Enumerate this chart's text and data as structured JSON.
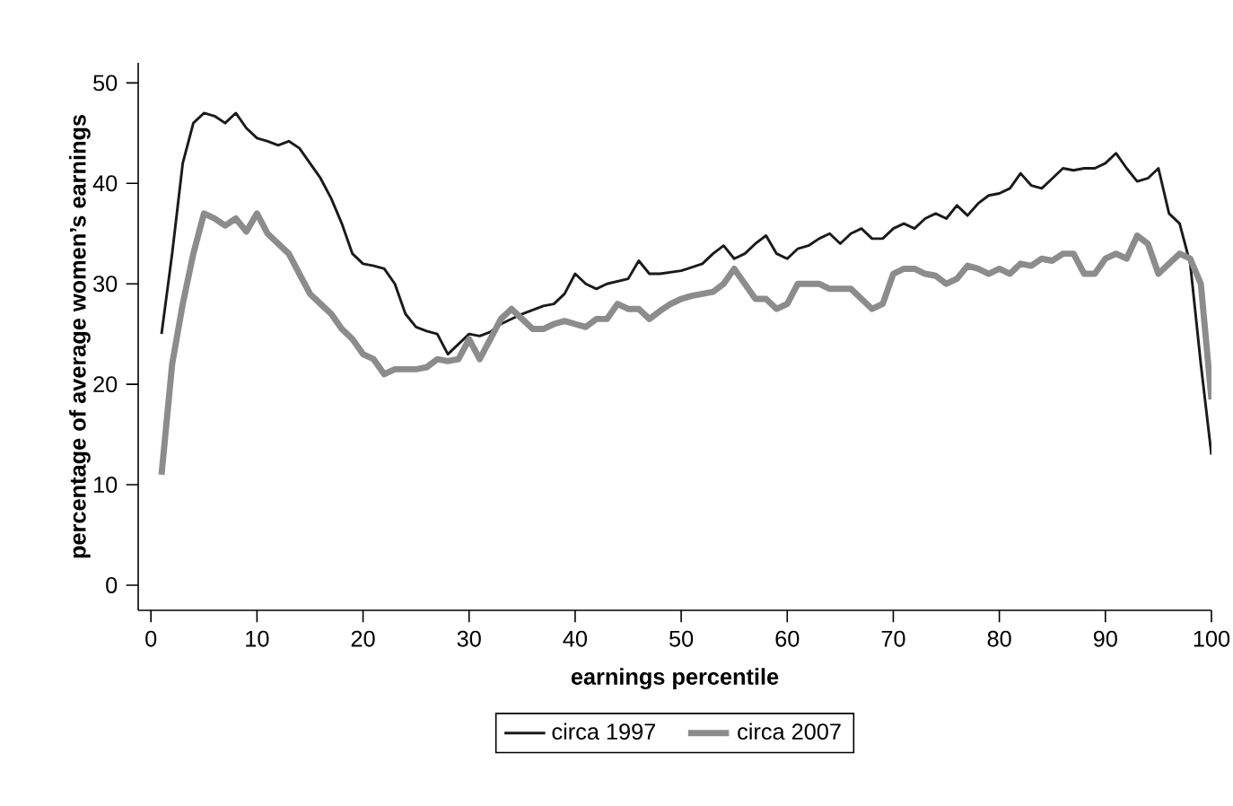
{
  "chart_data": {
    "type": "line",
    "xlabel": "earnings percentile",
    "ylabel": "percentage of average women’s earnings",
    "xlim": [
      -1.2,
      100
    ],
    "ylim": [
      -2.5,
      52
    ],
    "xticks": [
      0,
      10,
      20,
      30,
      40,
      50,
      60,
      70,
      80,
      90,
      100
    ],
    "yticks": [
      0,
      10,
      20,
      30,
      40,
      50
    ],
    "grid": false,
    "legend": "bottom",
    "line_style": "solid",
    "series": [
      {
        "name": "circa 1997",
        "color": "#1a1a1a",
        "x": [
          1,
          2,
          3,
          4,
          5,
          6,
          7,
          8,
          9,
          10,
          11,
          12,
          13,
          14,
          15,
          16,
          17,
          18,
          19,
          20,
          21,
          22,
          23,
          24,
          25,
          26,
          27,
          28,
          29,
          30,
          31,
          32,
          33,
          35,
          37,
          38,
          39,
          40,
          41,
          42,
          43,
          45,
          46,
          47,
          48,
          50,
          52,
          53,
          54,
          55,
          56,
          57,
          58,
          59,
          60,
          61,
          62,
          63,
          64,
          65,
          66,
          67,
          68,
          69,
          70,
          71,
          72,
          73,
          74,
          75,
          76,
          77,
          78,
          79,
          80,
          81,
          82,
          83,
          84,
          85,
          86,
          87,
          88,
          89,
          90,
          91,
          92,
          93,
          94,
          95,
          96,
          97,
          98,
          99,
          100
        ],
        "values": [
          25,
          33,
          42,
          46,
          47,
          46.7,
          46,
          47,
          45.5,
          44.5,
          44.2,
          43.8,
          44.2,
          43.5,
          42,
          40.5,
          38.5,
          36,
          33,
          32,
          31.8,
          31.5,
          30,
          27,
          25.7,
          25.3,
          25,
          23,
          24,
          25,
          24.8,
          25.2,
          26,
          27,
          27.8,
          28,
          29,
          31,
          30,
          29.5,
          30,
          30.5,
          32.3,
          31,
          31,
          31.3,
          32,
          33,
          33.8,
          32.5,
          33,
          34,
          34.8,
          33,
          32.5,
          33.5,
          33.8,
          34.5,
          35,
          34,
          35,
          35.5,
          34.5,
          34.5,
          35.5,
          36,
          35.5,
          36.5,
          37,
          36.5,
          37.8,
          36.8,
          38,
          38.8,
          39,
          39.5,
          41,
          39.8,
          39.5,
          40.5,
          41.5,
          41.3,
          41.5,
          41.5,
          42,
          43,
          41.5,
          40.2,
          40.5,
          41.5,
          37,
          36,
          32,
          22,
          13
        ]
      },
      {
        "name": "circa 2007",
        "color": "#8c8c8c",
        "x": [
          1,
          2,
          3,
          4,
          5,
          6,
          7,
          8,
          9,
          10,
          11,
          12,
          13,
          14,
          15,
          16,
          17,
          18,
          19,
          20,
          21,
          22,
          23,
          24,
          25,
          26,
          27,
          28,
          29,
          30,
          31,
          32,
          33,
          34,
          35,
          36,
          37,
          38,
          39,
          40,
          41,
          42,
          43,
          44,
          45,
          46,
          47,
          48,
          49,
          50,
          51,
          52,
          53,
          54,
          55,
          56,
          57,
          58,
          59,
          60,
          61,
          62,
          63,
          64,
          65,
          66,
          67,
          68,
          69,
          70,
          71,
          72,
          73,
          74,
          75,
          76,
          77,
          78,
          79,
          80,
          81,
          82,
          83,
          84,
          85,
          86,
          87,
          88,
          89,
          90,
          91,
          92,
          93,
          94,
          95,
          96,
          97,
          98,
          99,
          100
        ],
        "values": [
          11,
          22,
          28,
          33,
          37,
          36.5,
          35.8,
          36.5,
          35.2,
          37,
          35,
          34,
          33,
          31,
          29,
          28,
          27,
          25.5,
          24.5,
          23,
          22.5,
          21,
          21.5,
          21.5,
          21.5,
          21.7,
          22.5,
          22.3,
          22.5,
          24.5,
          22.5,
          24.5,
          26.5,
          27.5,
          26.5,
          25.5,
          25.5,
          26,
          26.3,
          26,
          25.7,
          26.5,
          26.5,
          28,
          27.5,
          27.5,
          26.5,
          27.3,
          28,
          28.5,
          28.8,
          29,
          29.2,
          30,
          31.5,
          30,
          28.5,
          28.5,
          27.5,
          28,
          30,
          30,
          30,
          29.5,
          29.5,
          29.5,
          28.5,
          27.5,
          28,
          31,
          31.5,
          31.5,
          31,
          30.8,
          30,
          30.5,
          31.8,
          31.5,
          31,
          31.5,
          31,
          32,
          31.8,
          32.5,
          32.3,
          33,
          33,
          31,
          31,
          32.5,
          33,
          32.5,
          34.8,
          34,
          31,
          32,
          33,
          32.5,
          30,
          18.5
        ]
      }
    ]
  }
}
